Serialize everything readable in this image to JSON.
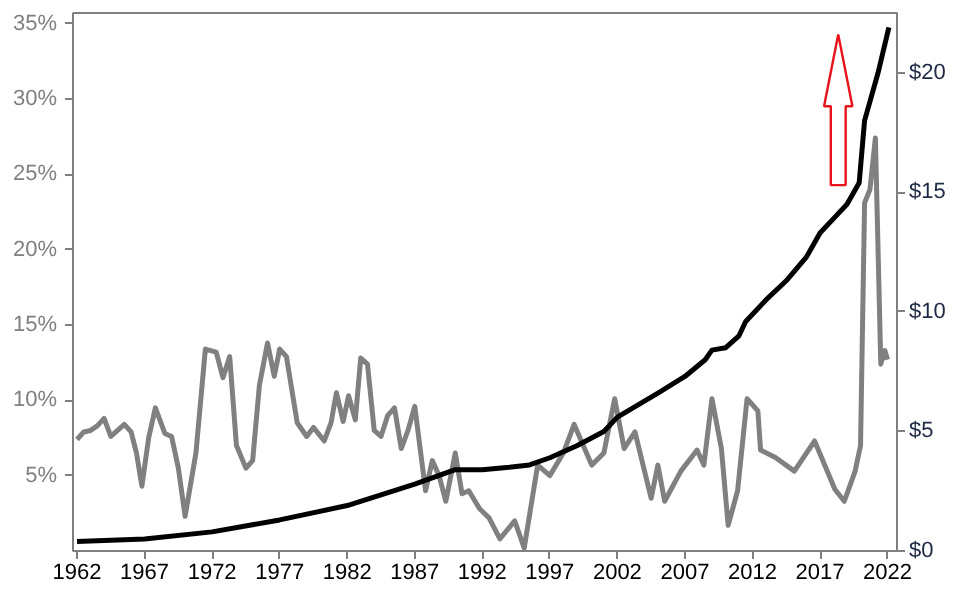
{
  "chart_data": {
    "type": "line",
    "grid": false,
    "xlim": [
      1961.7,
      2022.7
    ],
    "xticks": [
      1962,
      1967,
      1972,
      1977,
      1982,
      1987,
      1992,
      1997,
      2002,
      2007,
      2012,
      2017,
      2022
    ],
    "ylim": [
      0,
      35.7
    ],
    "yticks": [
      {
        "value": 5,
        "label": "5%"
      },
      {
        "value": 10,
        "label": "10%"
      },
      {
        "value": 15,
        "label": "15%"
      },
      {
        "value": 20,
        "label": "20%"
      },
      {
        "value": 25,
        "label": "25%"
      },
      {
        "value": 30,
        "label": "30%"
      },
      {
        "value": 35,
        "label": "35%"
      }
    ],
    "y2lim": [
      0,
      22.5
    ],
    "y2ticks": [
      {
        "value": 0,
        "label": "$0"
      },
      {
        "value": 5,
        "label": "$5"
      },
      {
        "value": 10,
        "label": "$10"
      },
      {
        "value": 15,
        "label": "$15"
      },
      {
        "value": 20,
        "label": "$20"
      }
    ],
    "series": [
      {
        "color": "#808080",
        "x": [
          1962.0,
          1962.5,
          1963.0,
          1963.5,
          1964.0,
          1964.5,
          1965.0,
          1965.5,
          1966.0,
          1966.4,
          1966.8,
          1967.3,
          1967.8,
          1968.5,
          1969.0,
          1969.5,
          1970.0,
          1970.8,
          1971.5,
          1972.3,
          1972.8,
          1973.3,
          1973.8,
          1974.5,
          1975.0,
          1975.5,
          1976.1,
          1976.6,
          1977.0,
          1977.5,
          1978.3,
          1979.0,
          1979.5,
          1980.3,
          1980.8,
          1981.2,
          1981.7,
          1982.1,
          1982.6,
          1983.0,
          1983.5,
          1984.0,
          1984.5,
          1985.0,
          1985.5,
          1986.0,
          1986.5,
          1987.0,
          1987.8,
          1988.3,
          1988.8,
          1989.3,
          1990.0,
          1990.5,
          1991.0,
          1991.8,
          1992.5,
          1993.3,
          1994.4,
          1995.1,
          1996.1,
          1997.0,
          1998.0,
          1998.8,
          2000.1,
          2001.0,
          2001.8,
          2002.5,
          2003.3,
          2004.5,
          2005.0,
          2005.5,
          2006.7,
          2007.9,
          2008.4,
          2009.0,
          2009.7,
          2010.2,
          2010.9,
          2011.6,
          2012.4,
          2012.6,
          2013.7,
          2015.1,
          2016.6,
          2018.1,
          2018.8,
          2019.6,
          2020.0,
          2020.3,
          2020.7,
          2021.1,
          2021.5,
          2021.8,
          2022.0
        ],
        "values": [
          7.4,
          7.9,
          8.0,
          8.3,
          8.8,
          7.6,
          8.0,
          8.4,
          7.9,
          6.5,
          4.3,
          7.5,
          9.5,
          7.8,
          7.6,
          5.5,
          2.3,
          6.5,
          13.4,
          13.2,
          11.5,
          12.9,
          7.0,
          5.5,
          6.0,
          11.0,
          13.8,
          11.6,
          13.4,
          12.9,
          8.5,
          7.6,
          8.2,
          7.3,
          8.5,
          10.5,
          8.6,
          10.3,
          8.7,
          12.8,
          12.4,
          8.0,
          7.6,
          9.0,
          9.5,
          6.8,
          8.0,
          9.6,
          4.0,
          6.0,
          5.0,
          3.3,
          6.5,
          3.8,
          4.0,
          2.8,
          2.2,
          0.8,
          2.0,
          0.2,
          5.7,
          5.0,
          6.5,
          8.4,
          5.7,
          6.5,
          10.1,
          6.8,
          7.9,
          3.5,
          5.7,
          3.3,
          5.3,
          6.7,
          5.7,
          10.1,
          6.8,
          1.7,
          4.0,
          10.1,
          9.3,
          6.7,
          6.2,
          5.3,
          7.3,
          4.1,
          3.3,
          5.3,
          7.0,
          23.1,
          24.0,
          27.4,
          12.4,
          13.3,
          12.7
        ]
      },
      {
        "color": "#000000",
        "axis": "y2",
        "x": [
          1962,
          1967,
          1972,
          1977,
          1982,
          1987,
          1990,
          1992,
          1994,
          1995.5,
          1997,
          1999,
          2001,
          2002,
          2003.5,
          2005,
          2007,
          2008.5,
          2009,
          2010,
          2011,
          2011.5,
          2013,
          2014.5,
          2016,
          2017,
          2018,
          2019,
          2019.9,
          2020.3,
          2020.8,
          2021.3,
          2022.1
        ],
        "values": [
          0.4,
          0.5,
          0.8,
          1.3,
          1.9,
          2.8,
          3.4,
          3.4,
          3.5,
          3.6,
          3.9,
          4.4,
          5.0,
          5.6,
          6.1,
          6.6,
          7.3,
          8.0,
          8.4,
          8.5,
          9.0,
          9.6,
          10.5,
          11.3,
          12.3,
          13.3,
          13.9,
          14.5,
          15.4,
          18.0,
          19.0,
          20.0,
          21.9
        ]
      }
    ]
  }
}
